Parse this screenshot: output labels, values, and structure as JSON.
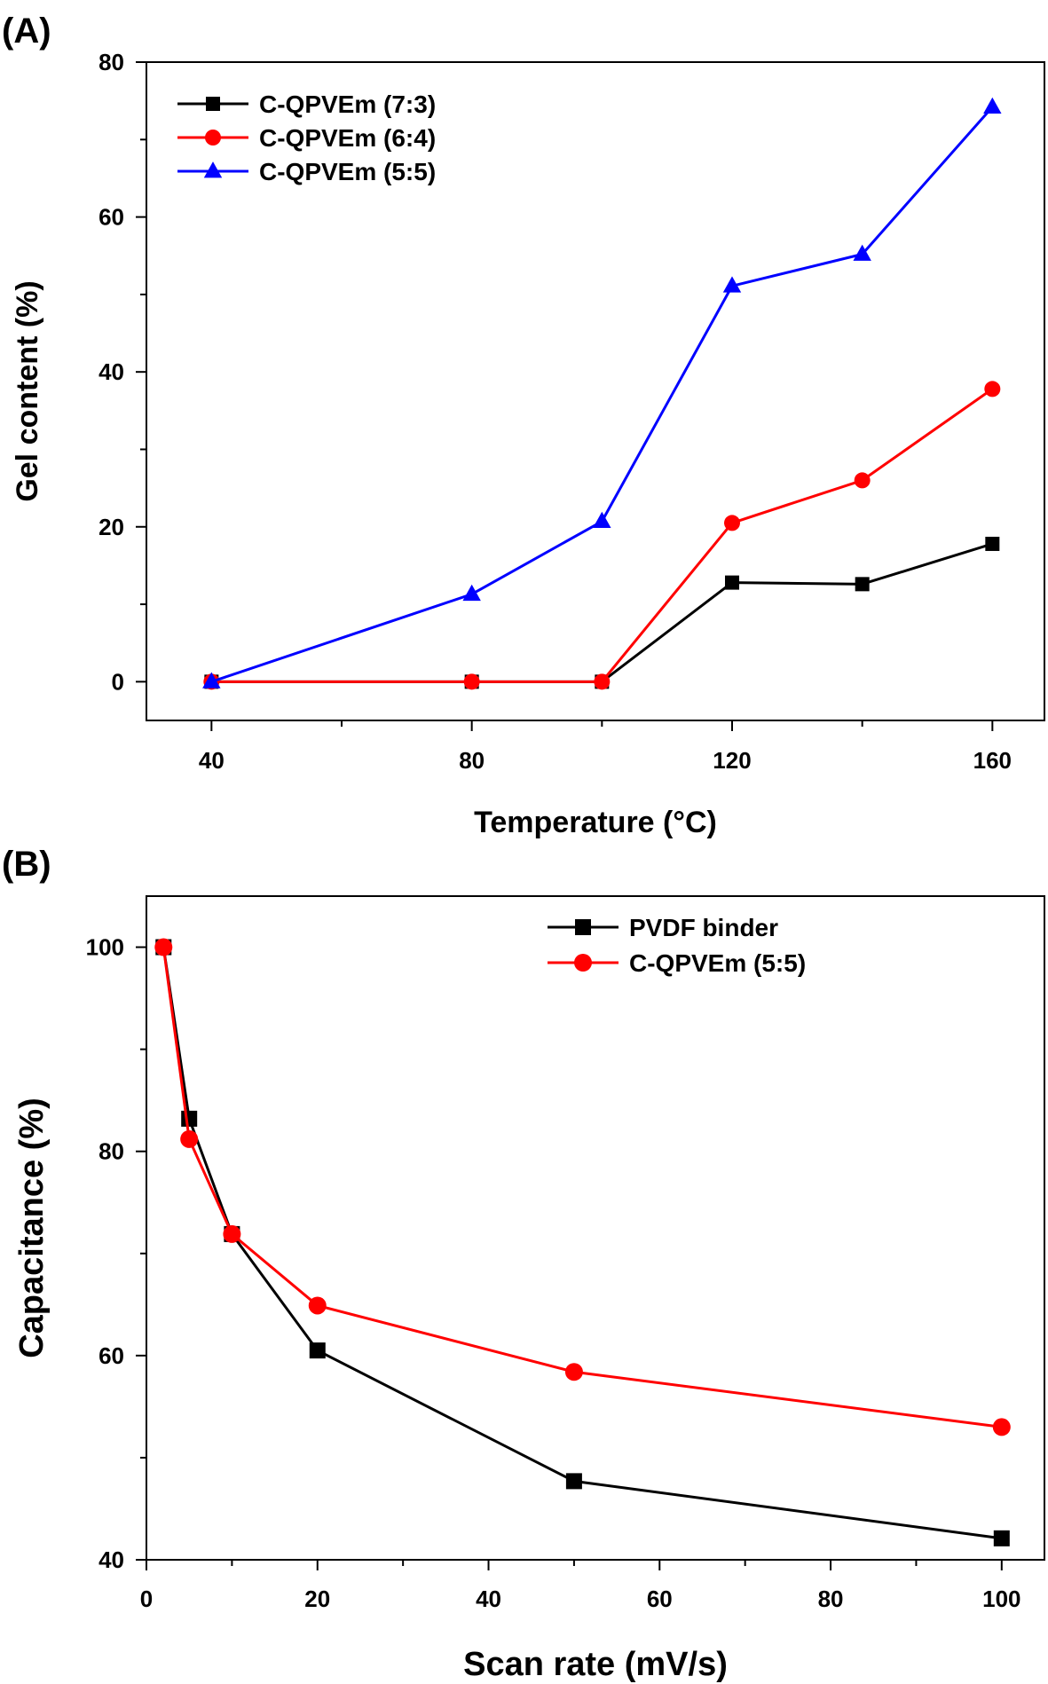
{
  "chart_data": [
    {
      "panel_label": "(A)",
      "type": "line",
      "xlabel": "Temperature (°C)",
      "ylabel": "Gel content (%)",
      "xlim": [
        30,
        168
      ],
      "ylim": [
        -5,
        80
      ],
      "xticks": [
        40,
        80,
        120,
        160
      ],
      "yticks": [
        0,
        20,
        40,
        60,
        80
      ],
      "grid": false,
      "legend_position": "top-left",
      "series": [
        {
          "name": "C-QPVEm (7:3)",
          "color": "#000000",
          "marker": "square",
          "x": [
            40,
            80,
            100,
            120,
            140,
            160
          ],
          "y": [
            0,
            0,
            0,
            12.8,
            12.6,
            17.8
          ]
        },
        {
          "name": "C-QPVEm (6:4)",
          "color": "#ff0000",
          "marker": "circle",
          "x": [
            40,
            80,
            100,
            120,
            140,
            160
          ],
          "y": [
            0,
            0,
            0,
            20.5,
            26.0,
            37.8
          ]
        },
        {
          "name": "C-QPVEm (5:5)",
          "color": "#0000ff",
          "marker": "triangle",
          "x": [
            40,
            80,
            100,
            120,
            140,
            160
          ],
          "y": [
            0,
            11.3,
            20.7,
            51.1,
            55.2,
            74.2
          ]
        }
      ]
    },
    {
      "panel_label": "(B)",
      "type": "line",
      "xlabel": "Scan rate (mV/s)",
      "ylabel": "Capacitance (%)",
      "xlim": [
        0,
        105
      ],
      "ylim": [
        40,
        105
      ],
      "xticks": [
        0,
        20,
        40,
        60,
        80,
        100
      ],
      "yticks": [
        40,
        60,
        80,
        100
      ],
      "grid": false,
      "legend_position": "top-right",
      "series": [
        {
          "name": "PVDF binder",
          "color": "#000000",
          "marker": "square",
          "x": [
            2,
            5,
            10,
            20,
            50,
            100
          ],
          "y": [
            100,
            83.2,
            71.9,
            60.5,
            47.7,
            42.1
          ]
        },
        {
          "name": "C-QPVEm (5:5)",
          "color": "#ff0000",
          "marker": "circle",
          "x": [
            2,
            5,
            10,
            20,
            50,
            100
          ],
          "y": [
            100,
            81.2,
            71.9,
            64.9,
            58.4,
            53.0
          ]
        }
      ]
    }
  ]
}
